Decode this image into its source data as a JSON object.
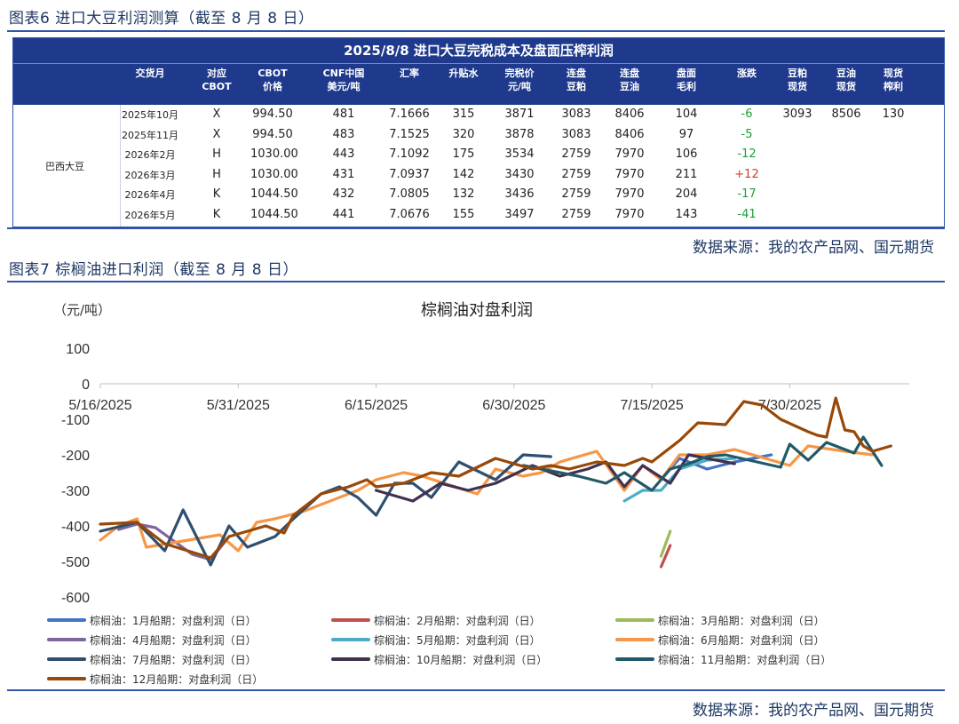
{
  "figure6_title": "图表6 进口大豆利润测算（截至 8 月 8 日）",
  "figure7_title": "图表7 棕榈油进口利润（截至 8 月 8 日）",
  "source_1": "数据来源：我的农产品网、国元期货",
  "source_2": "数据来源：我的农产品网、国元期货",
  "table": {
    "title": "2025/8/8 进口大豆完税成本及盘面压榨利润",
    "headers": [
      "交货月",
      "对应\nCBOT",
      "CBOT\n价格",
      "CNF中国\n美元/吨",
      "汇率",
      "升贴水",
      "完税价\n元/吨",
      "连盘\n豆粕",
      "连盘\n豆油",
      "盘面\n毛利",
      "涨跌",
      "豆粕\n现货",
      "豆油\n现货",
      "现货\n榨利"
    ],
    "group_label": "巴西大豆",
    "rows": [
      [
        "2025年10月",
        "X",
        "994.50",
        "481",
        "7.1666",
        "315",
        "3871",
        "3083",
        "8406",
        "104",
        "-6",
        "3093",
        "8506",
        "130"
      ],
      [
        "2025年11月",
        "X",
        "994.50",
        "483",
        "7.1525",
        "320",
        "3878",
        "3083",
        "8406",
        "97",
        "-5",
        "",
        "",
        ""
      ],
      [
        "2026年2月",
        "H",
        "1030.00",
        "443",
        "7.1092",
        "175",
        "3534",
        "2759",
        "7970",
        "106",
        "-12",
        "",
        "",
        ""
      ],
      [
        "2026年3月",
        "H",
        "1030.00",
        "431",
        "7.0937",
        "142",
        "3430",
        "2759",
        "7970",
        "211",
        "+12",
        "",
        "",
        ""
      ],
      [
        "2026年4月",
        "K",
        "1044.50",
        "432",
        "7.0805",
        "132",
        "3436",
        "2759",
        "7970",
        "204",
        "-17",
        "",
        "",
        ""
      ],
      [
        "2026年5月",
        "K",
        "1044.50",
        "441",
        "7.0676",
        "155",
        "3497",
        "2759",
        "7970",
        "143",
        "-41",
        "",
        "",
        ""
      ]
    ]
  },
  "chart_data": {
    "type": "line",
    "title": "棕榈油对盘利润",
    "ylabel": "（元/吨）",
    "ylim": [
      -600,
      100
    ],
    "yticks": [
      100,
      0,
      -100,
      -200,
      -300,
      -400,
      -500,
      -600
    ],
    "xlim": [
      "2025-05-16",
      "2025-08-12"
    ],
    "xticks": [
      "5/16/2025",
      "5/31/2025",
      "6/15/2025",
      "6/30/2025",
      "7/15/2025",
      "7/30/2025"
    ],
    "legend_position": "bottom",
    "series": [
      {
        "name": "棕榈油：1月船期：对盘利润（日）",
        "color": "#4472c4",
        "points": [
          [
            "2025-07-16",
            -270
          ],
          [
            "2025-07-18",
            -210
          ],
          [
            "2025-07-21",
            -240
          ],
          [
            "2025-07-24",
            -220
          ],
          [
            "2025-07-28",
            -200
          ]
        ]
      },
      {
        "name": "棕榈油：2月船期：对盘利润（日）",
        "color": "#c0504d",
        "points": [
          [
            "2025-07-16",
            -515
          ],
          [
            "2025-07-17",
            -455
          ]
        ]
      },
      {
        "name": "棕榈油：3月船期：对盘利润（日）",
        "color": "#9bbb59",
        "points": [
          [
            "2025-07-16",
            -485
          ],
          [
            "2025-07-17",
            -415
          ]
        ]
      },
      {
        "name": "棕榈油：4月船期：对盘利润（日）",
        "color": "#8064a2",
        "points": [
          [
            "2025-05-18",
            -410
          ],
          [
            "2025-05-20",
            -395
          ],
          [
            "2025-05-22",
            -405
          ],
          [
            "2025-05-26",
            -480
          ],
          [
            "2025-05-28",
            -495
          ],
          [
            "2025-05-30",
            -430
          ]
        ]
      },
      {
        "name": "棕榈油：5月船期：对盘利润（日）",
        "color": "#4bacc6",
        "points": [
          [
            "2025-07-12",
            -330
          ],
          [
            "2025-07-14",
            -300
          ],
          [
            "2025-07-16",
            -300
          ],
          [
            "2025-07-18",
            -240
          ],
          [
            "2025-07-21",
            -215
          ],
          [
            "2025-07-24",
            -210
          ]
        ]
      },
      {
        "name": "棕榈油：6月船期：对盘利润（日）",
        "color": "#f79646",
        "points": [
          [
            "2025-05-16",
            -440
          ],
          [
            "2025-05-18",
            -400
          ],
          [
            "2025-05-20",
            -380
          ],
          [
            "2025-05-21",
            -460
          ],
          [
            "2025-05-29",
            -425
          ],
          [
            "2025-05-31",
            -470
          ],
          [
            "2025-06-02",
            -390
          ],
          [
            "2025-06-04",
            -380
          ],
          [
            "2025-06-07",
            -360
          ],
          [
            "2025-06-13",
            -300
          ],
          [
            "2025-06-15",
            -270
          ],
          [
            "2025-06-18",
            -250
          ],
          [
            "2025-06-20",
            -260
          ],
          [
            "2025-06-26",
            -310
          ],
          [
            "2025-06-28",
            -240
          ],
          [
            "2025-07-01",
            -260
          ],
          [
            "2025-07-03",
            -250
          ],
          [
            "2025-07-05",
            -220
          ],
          [
            "2025-07-09",
            -190
          ],
          [
            "2025-07-12",
            -300
          ],
          [
            "2025-07-14",
            -230
          ],
          [
            "2025-07-16",
            -270
          ],
          [
            "2025-07-18",
            -200
          ],
          [
            "2025-07-21",
            -200
          ],
          [
            "2025-07-24",
            -185
          ],
          [
            "2025-07-30",
            -230
          ],
          [
            "2025-08-01",
            -175
          ],
          [
            "2025-08-05",
            -190
          ],
          [
            "2025-08-08",
            -200
          ]
        ]
      },
      {
        "name": "棕榈油：7月船期：对盘利润（日）",
        "color": "#2e4f6e",
        "points": [
          [
            "2025-05-16",
            -415
          ],
          [
            "2025-05-20",
            -390
          ],
          [
            "2025-05-23",
            -470
          ],
          [
            "2025-05-25",
            -355
          ],
          [
            "2025-05-28",
            -510
          ],
          [
            "2025-05-30",
            -400
          ],
          [
            "2025-06-01",
            -460
          ],
          [
            "2025-06-04",
            -430
          ],
          [
            "2025-06-06",
            -380
          ],
          [
            "2025-06-09",
            -310
          ],
          [
            "2025-06-11",
            -290
          ],
          [
            "2025-06-13",
            -320
          ],
          [
            "2025-06-15",
            -370
          ],
          [
            "2025-06-17",
            -280
          ],
          [
            "2025-06-19",
            -280
          ],
          [
            "2025-06-21",
            -320
          ],
          [
            "2025-06-24",
            -220
          ],
          [
            "2025-06-28",
            -270
          ],
          [
            "2025-07-01",
            -200
          ],
          [
            "2025-07-04",
            -205
          ]
        ]
      },
      {
        "name": "棕榈油：10月船期：对盘利润（日）",
        "color": "#403151",
        "points": [
          [
            "2025-06-15",
            -300
          ],
          [
            "2025-06-19",
            -330
          ],
          [
            "2025-06-22",
            -280
          ],
          [
            "2025-06-25",
            -300
          ],
          [
            "2025-06-28",
            -280
          ],
          [
            "2025-07-02",
            -230
          ],
          [
            "2025-07-05",
            -260
          ],
          [
            "2025-07-08",
            -240
          ],
          [
            "2025-07-10",
            -220
          ],
          [
            "2025-07-12",
            -290
          ],
          [
            "2025-07-14",
            -230
          ],
          [
            "2025-07-17",
            -280
          ],
          [
            "2025-07-19",
            -200
          ],
          [
            "2025-07-21",
            -210
          ],
          [
            "2025-07-24",
            -225
          ]
        ]
      },
      {
        "name": "棕榈油：11月船期：对盘利润（日）",
        "color": "#215968",
        "points": [
          [
            "2025-07-01",
            -230
          ],
          [
            "2025-07-04",
            -245
          ],
          [
            "2025-07-07",
            -260
          ],
          [
            "2025-07-10",
            -280
          ],
          [
            "2025-07-12",
            -250
          ],
          [
            "2025-07-15",
            -300
          ],
          [
            "2025-07-17",
            -240
          ],
          [
            "2025-07-19",
            -225
          ],
          [
            "2025-07-21",
            -205
          ],
          [
            "2025-07-23",
            -200
          ],
          [
            "2025-07-29",
            -235
          ],
          [
            "2025-07-30",
            -170
          ],
          [
            "2025-08-01",
            -215
          ],
          [
            "2025-08-03",
            -165
          ],
          [
            "2025-08-06",
            -195
          ],
          [
            "2025-08-07",
            -150
          ],
          [
            "2025-08-09",
            -230
          ]
        ]
      },
      {
        "name": "棕榈油：12月船期：对盘利润（日）",
        "color": "#984807",
        "points": [
          [
            "2025-05-16",
            -395
          ],
          [
            "2025-05-20",
            -390
          ],
          [
            "2025-05-23",
            -450
          ],
          [
            "2025-05-28",
            -490
          ],
          [
            "2025-05-30",
            -430
          ],
          [
            "2025-06-03",
            -400
          ],
          [
            "2025-06-05",
            -420
          ],
          [
            "2025-06-06",
            -370
          ],
          [
            "2025-06-09",
            -310
          ],
          [
            "2025-06-12",
            -290
          ],
          [
            "2025-06-14",
            -270
          ],
          [
            "2025-06-15",
            -290
          ],
          [
            "2025-06-18",
            -280
          ],
          [
            "2025-06-21",
            -250
          ],
          [
            "2025-06-24",
            -260
          ],
          [
            "2025-06-28",
            -210
          ],
          [
            "2025-07-02",
            -240
          ],
          [
            "2025-07-04",
            -230
          ],
          [
            "2025-07-06",
            -240
          ],
          [
            "2025-07-09",
            -220
          ],
          [
            "2025-07-12",
            -230
          ],
          [
            "2025-07-14",
            -210
          ],
          [
            "2025-07-15",
            -220
          ],
          [
            "2025-07-18",
            -160
          ],
          [
            "2025-07-20",
            -110
          ],
          [
            "2025-07-23",
            -115
          ],
          [
            "2025-07-25",
            -50
          ],
          [
            "2025-07-27",
            -60
          ],
          [
            "2025-07-29",
            -100
          ],
          [
            "2025-08-01",
            -135
          ],
          [
            "2025-08-02",
            -145
          ],
          [
            "2025-08-03",
            -150
          ],
          [
            "2025-08-04",
            -40
          ],
          [
            "2025-08-05",
            -130
          ],
          [
            "2025-08-06",
            -135
          ],
          [
            "2025-08-07",
            -175
          ],
          [
            "2025-08-08",
            -190
          ],
          [
            "2025-08-10",
            -175
          ]
        ]
      }
    ]
  }
}
